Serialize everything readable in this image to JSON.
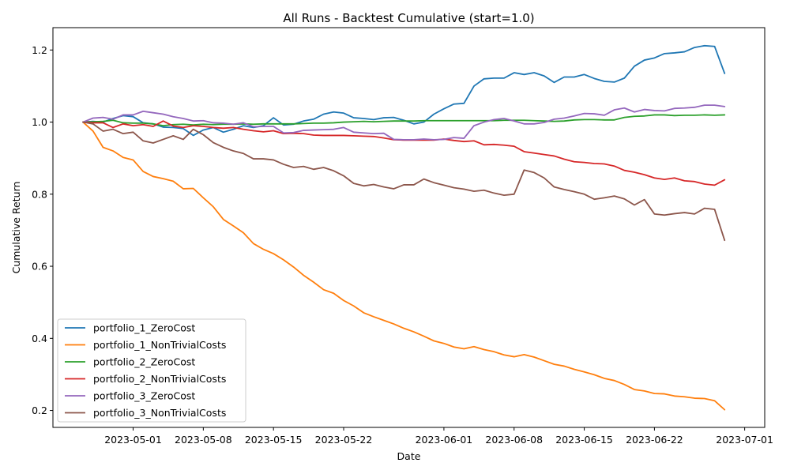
{
  "chart_data": {
    "type": "line",
    "title": "All Runs - Backtest Cumulative (start=1.0)",
    "xlabel": "Date",
    "ylabel": "Cumulative Return",
    "x_start": "2023-04-26",
    "x_end": "2023-06-30",
    "xlim": [
      "2023-04-23",
      "2023-07-03"
    ],
    "ylim": [
      0.153,
      1.262
    ],
    "x_ticks": [
      "2023-05-01",
      "2023-05-08",
      "2023-05-15",
      "2023-05-22",
      "2023-06-01",
      "2023-06-08",
      "2023-06-15",
      "2023-06-22",
      "2023-07-01"
    ],
    "y_ticks": [
      0.2,
      0.4,
      0.6,
      0.8,
      1.0,
      1.2
    ],
    "legend_position": "lower-left",
    "grid": false,
    "series": [
      {
        "name": "portfolio_1_ZeroCost",
        "color": "#1f77b4",
        "values": [
          1.0,
          1.002,
          1.0,
          1.01,
          1.018,
          1.015,
          0.998,
          0.995,
          0.986,
          0.985,
          0.982,
          0.963,
          0.978,
          0.985,
          0.972,
          0.98,
          0.99,
          0.985,
          0.99,
          1.012,
          0.992,
          0.994,
          1.003,
          1.008,
          1.022,
          1.028,
          1.025,
          1.012,
          1.01,
          1.007,
          1.012,
          1.013,
          1.005,
          0.995,
          1.0,
          1.022,
          1.037,
          1.05,
          1.052,
          1.1,
          1.12,
          1.122,
          1.122,
          1.137,
          1.132,
          1.137,
          1.128,
          1.11,
          1.125,
          1.125,
          1.132,
          1.121,
          1.113,
          1.111,
          1.122,
          1.155,
          1.172,
          1.178,
          1.19,
          1.192,
          1.195,
          1.207,
          1.212,
          1.21,
          1.135
        ]
      },
      {
        "name": "portfolio_1_NonTrivialCosts",
        "color": "#ff7f0e",
        "values": [
          1.0,
          0.975,
          0.93,
          0.92,
          0.902,
          0.895,
          0.863,
          0.849,
          0.843,
          0.836,
          0.815,
          0.816,
          0.79,
          0.765,
          0.73,
          0.712,
          0.693,
          0.663,
          0.647,
          0.635,
          0.618,
          0.598,
          0.575,
          0.556,
          0.535,
          0.525,
          0.505,
          0.49,
          0.471,
          0.46,
          0.45,
          0.44,
          0.428,
          0.418,
          0.406,
          0.393,
          0.386,
          0.376,
          0.371,
          0.377,
          0.369,
          0.363,
          0.354,
          0.349,
          0.355,
          0.348,
          0.338,
          0.328,
          0.323,
          0.314,
          0.307,
          0.299,
          0.289,
          0.283,
          0.272,
          0.258,
          0.254,
          0.247,
          0.246,
          0.24,
          0.238,
          0.234,
          0.233,
          0.227,
          0.202
        ]
      },
      {
        "name": "portfolio_2_ZeroCost",
        "color": "#2ca02c",
        "values": [
          1.0,
          1.001,
          1.002,
          1.005,
          0.998,
          0.997,
          0.997,
          0.995,
          0.99,
          0.993,
          0.994,
          0.992,
          0.994,
          0.993,
          0.994,
          0.994,
          0.995,
          0.994,
          0.995,
          0.995,
          0.995,
          0.995,
          0.996,
          0.997,
          0.997,
          0.998,
          1.0,
          1.001,
          1.002,
          1.001,
          1.002,
          1.003,
          1.003,
          1.003,
          1.004,
          1.004,
          1.004,
          1.004,
          1.004,
          1.004,
          1.004,
          1.004,
          1.005,
          1.005,
          1.005,
          1.004,
          1.003,
          1.002,
          1.003,
          1.006,
          1.007,
          1.007,
          1.006,
          1.006,
          1.013,
          1.016,
          1.017,
          1.02,
          1.02,
          1.018,
          1.019,
          1.019,
          1.02,
          1.019,
          1.02
        ]
      },
      {
        "name": "portfolio_2_NonTrivialCosts",
        "color": "#d62728",
        "values": [
          1.0,
          0.998,
          0.998,
          0.985,
          0.995,
          0.99,
          0.993,
          0.988,
          1.003,
          0.989,
          0.985,
          0.99,
          0.988,
          0.985,
          0.983,
          0.985,
          0.98,
          0.976,
          0.973,
          0.976,
          0.968,
          0.969,
          0.968,
          0.964,
          0.963,
          0.963,
          0.963,
          0.962,
          0.961,
          0.96,
          0.956,
          0.951,
          0.95,
          0.95,
          0.95,
          0.95,
          0.953,
          0.949,
          0.946,
          0.948,
          0.937,
          0.938,
          0.936,
          0.933,
          0.918,
          0.914,
          0.91,
          0.906,
          0.897,
          0.89,
          0.888,
          0.885,
          0.884,
          0.878,
          0.866,
          0.861,
          0.854,
          0.845,
          0.841,
          0.845,
          0.837,
          0.835,
          0.828,
          0.825,
          0.84
        ]
      },
      {
        "name": "portfolio_3_ZeroCost",
        "color": "#9467bd",
        "values": [
          1.0,
          1.011,
          1.013,
          1.008,
          1.02,
          1.02,
          1.03,
          1.026,
          1.022,
          1.015,
          1.01,
          1.003,
          1.004,
          0.998,
          0.997,
          0.994,
          0.998,
          0.987,
          0.988,
          0.988,
          0.97,
          0.971,
          0.977,
          0.978,
          0.979,
          0.98,
          0.985,
          0.972,
          0.97,
          0.968,
          0.969,
          0.952,
          0.951,
          0.951,
          0.953,
          0.951,
          0.952,
          0.957,
          0.955,
          0.99,
          1.0,
          1.007,
          1.01,
          1.003,
          0.995,
          0.995,
          0.999,
          1.008,
          1.011,
          1.017,
          1.024,
          1.023,
          1.019,
          1.034,
          1.039,
          1.028,
          1.035,
          1.032,
          1.031,
          1.038,
          1.039,
          1.041,
          1.047,
          1.047,
          1.043
        ]
      },
      {
        "name": "portfolio_3_NonTrivialCosts",
        "color": "#8c564b",
        "values": [
          1.0,
          0.995,
          0.975,
          0.98,
          0.968,
          0.972,
          0.948,
          0.942,
          0.952,
          0.962,
          0.952,
          0.98,
          0.965,
          0.943,
          0.93,
          0.92,
          0.913,
          0.898,
          0.898,
          0.895,
          0.883,
          0.874,
          0.877,
          0.869,
          0.874,
          0.865,
          0.851,
          0.83,
          0.823,
          0.827,
          0.82,
          0.815,
          0.826,
          0.826,
          0.842,
          0.832,
          0.825,
          0.818,
          0.814,
          0.808,
          0.811,
          0.803,
          0.797,
          0.8,
          0.867,
          0.86,
          0.845,
          0.82,
          0.813,
          0.807,
          0.8,
          0.786,
          0.79,
          0.795,
          0.787,
          0.77,
          0.785,
          0.745,
          0.742,
          0.746,
          0.749,
          0.745,
          0.761,
          0.758,
          0.672
        ]
      }
    ]
  }
}
